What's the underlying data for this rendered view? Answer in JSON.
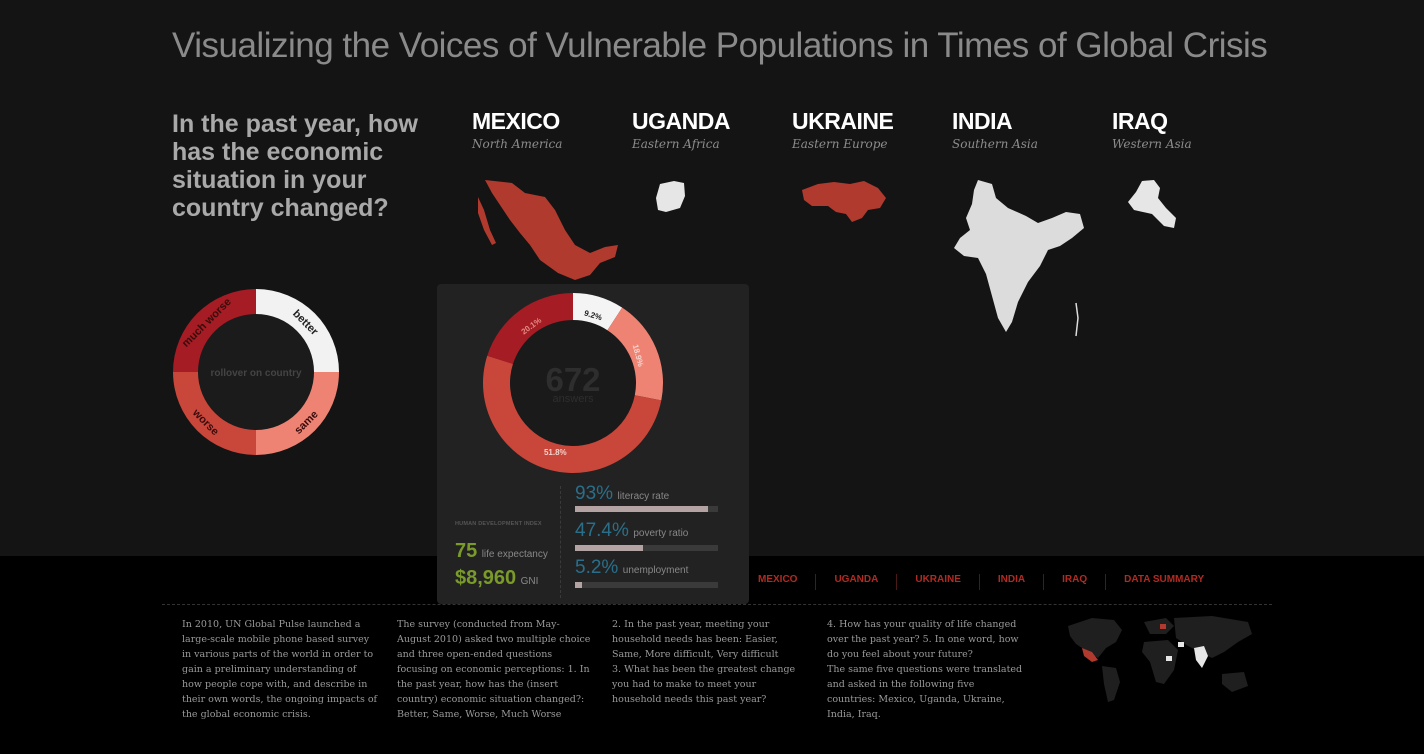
{
  "page": {
    "title": "Visualizing the Voices of Vulnerable Populations in Times of Global Crisis",
    "question": "In the past year, how has the economic situation in your country changed?"
  },
  "countries": [
    {
      "name": "MEXICO",
      "region": "North America",
      "map_color": "#b03a2e"
    },
    {
      "name": "UGANDA",
      "region": "Eastern Africa",
      "map_color": "#e6e6e6"
    },
    {
      "name": "UKRAINE",
      "region": "Eastern Europe",
      "map_color": "#b03a2e"
    },
    {
      "name": "INDIA",
      "region": "Southern Asia",
      "map_color": "#dcdcdc"
    },
    {
      "name": "IRAQ",
      "region": "Western Asia",
      "map_color": "#e6e6e6"
    }
  ],
  "legend_donut": {
    "center_text": "rollover on country",
    "segments": [
      {
        "label": "better",
        "color": "#f2f2f2"
      },
      {
        "label": "same",
        "color": "#ef8373"
      },
      {
        "label": "worse",
        "color": "#c9463a"
      },
      {
        "label": "much worse",
        "color": "#a51c24"
      }
    ]
  },
  "chart_data": {
    "type": "pie",
    "variant": "donut",
    "center_value": "672",
    "center_label": "answers",
    "categories": [
      "better",
      "same",
      "worse",
      "much worse"
    ],
    "values": [
      9.2,
      18.9,
      51.8,
      20.1
    ],
    "value_labels": [
      "9.2%",
      "18.9%",
      "51.8%",
      "20.1%"
    ],
    "colors": [
      "#f4f4f4",
      "#ef8373",
      "#c9463a",
      "#a51c24"
    ]
  },
  "stats": {
    "hdi_heading": "HUMAN DEVELOPMENT INDEX",
    "life_expectancy": {
      "value": "75",
      "label": "life expectancy"
    },
    "gni": {
      "value": "$8,960",
      "label": "GNI"
    },
    "bars": [
      {
        "value": "93%",
        "label": "literacy rate",
        "fraction": 0.93
      },
      {
        "value": "47.4%",
        "label": "poverty ratio",
        "fraction": 0.474
      },
      {
        "value": "5.2%",
        "label": "unemployment",
        "fraction": 0.052
      }
    ],
    "accent_green": "#7a9a2a",
    "accent_blue": "#2a6f8a"
  },
  "nav": [
    "MEXICO",
    "UGANDA",
    "UKRAINE",
    "INDIA",
    "IRAQ",
    "DATA SUMMARY"
  ],
  "info": [
    "In 2010, UN Global Pulse launched a large-scale mobile phone based survey in various parts of the world in order to gain a preliminary understanding of how people cope with, and describe in their own words, the ongoing impacts of the global economic crisis.",
    "The survey (conducted from May-August 2010) asked two multiple choice and three open-ended questions focusing on economic perceptions: 1. In the past year, how has the (insert country) economic situation changed?: Better, Same, Worse, Much Worse",
    "2. In the past year, meeting your household needs has been: Easier, Same, More difficult, Very difficult\n3. What has been the greatest change you had to make to meet your household needs this past year?",
    "4. How has your quality of life changed over the past year? 5. In one word, how do you feel about your future?\nThe same five questions were translated and asked in the following five countries: Mexico, Uganda, Ukraine, India, Iraq."
  ]
}
